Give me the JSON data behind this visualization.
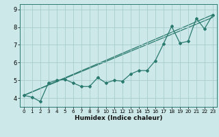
{
  "xlabel": "Humidex (Indice chaleur)",
  "background_color": "#cce8e8",
  "grid_color": "#aacccc",
  "line_color": "#2a7a6f",
  "xlim": [
    -0.5,
    23.5
  ],
  "ylim": [
    3.5,
    9.3
  ],
  "xticks": [
    0,
    1,
    2,
    3,
    4,
    5,
    6,
    7,
    8,
    9,
    10,
    11,
    12,
    13,
    14,
    15,
    16,
    17,
    18,
    19,
    20,
    21,
    22,
    23
  ],
  "yticks": [
    4,
    5,
    6,
    7,
    8,
    9
  ],
  "line1_x": [
    0,
    1,
    2,
    3,
    4,
    5,
    6,
    7,
    8,
    9,
    10,
    11,
    12,
    13,
    14,
    15,
    16,
    17,
    18,
    19,
    20,
    21,
    22,
    23
  ],
  "line1_y": [
    4.15,
    4.05,
    3.8,
    4.85,
    5.0,
    5.05,
    4.85,
    4.65,
    4.65,
    5.15,
    4.85,
    5.0,
    4.95,
    5.35,
    5.55,
    5.55,
    6.1,
    7.05,
    8.05,
    7.1,
    7.2,
    8.5,
    7.9,
    8.7
  ],
  "line2_y_start": 4.15,
  "line2_y_end": 8.7,
  "line3_y_start": 4.15,
  "line3_y_end": 8.55,
  "line2_x_start": 0,
  "line2_x_end": 23
}
